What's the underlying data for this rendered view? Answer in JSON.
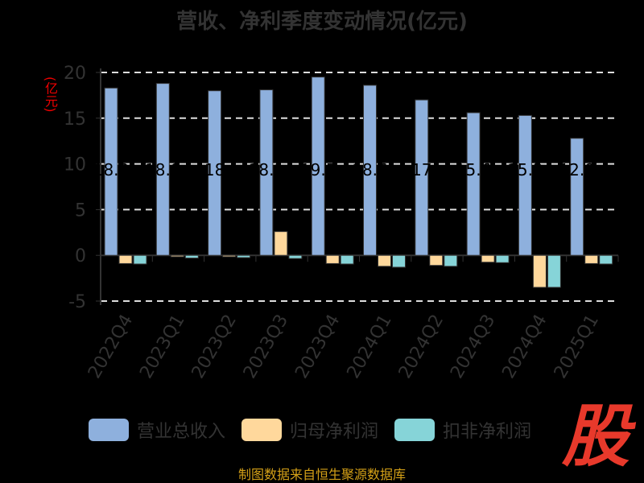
{
  "chart_data": {
    "type": "bar",
    "title": "营收、净利季度变动情况(亿元)",
    "ylabel": "(亿元)",
    "xlabel": "",
    "ylim": [
      -5,
      20
    ],
    "yticks": [
      -5,
      0,
      5,
      10,
      15,
      20
    ],
    "grid": true,
    "legend_position": "bottom",
    "categories": [
      "2022Q4",
      "2023Q1",
      "2023Q2",
      "2023Q3",
      "2023Q4",
      "2024Q1",
      "2024Q2",
      "2024Q3",
      "2024Q4",
      "2025Q1"
    ],
    "series": [
      {
        "name": "营业总收入",
        "color": "#8eb0dd",
        "values": [
          18.3,
          18.8,
          18.0,
          18.1,
          19.5,
          18.6,
          17.0,
          15.6,
          15.3,
          12.8
        ]
      },
      {
        "name": "归母净利润",
        "color": "#ffd89c",
        "values": [
          -0.9,
          -0.15,
          -0.15,
          2.6,
          -0.9,
          -1.2,
          -1.1,
          -0.75,
          -3.5,
          -0.9
        ]
      },
      {
        "name": "扣非净利润",
        "color": "#86d4d8",
        "values": [
          -0.95,
          -0.3,
          -0.25,
          -0.35,
          -0.95,
          -1.3,
          -1.2,
          -0.8,
          -3.5,
          -0.95
        ]
      }
    ]
  },
  "source": "制图数据来自恒生聚源数据库",
  "logo_text": "股"
}
